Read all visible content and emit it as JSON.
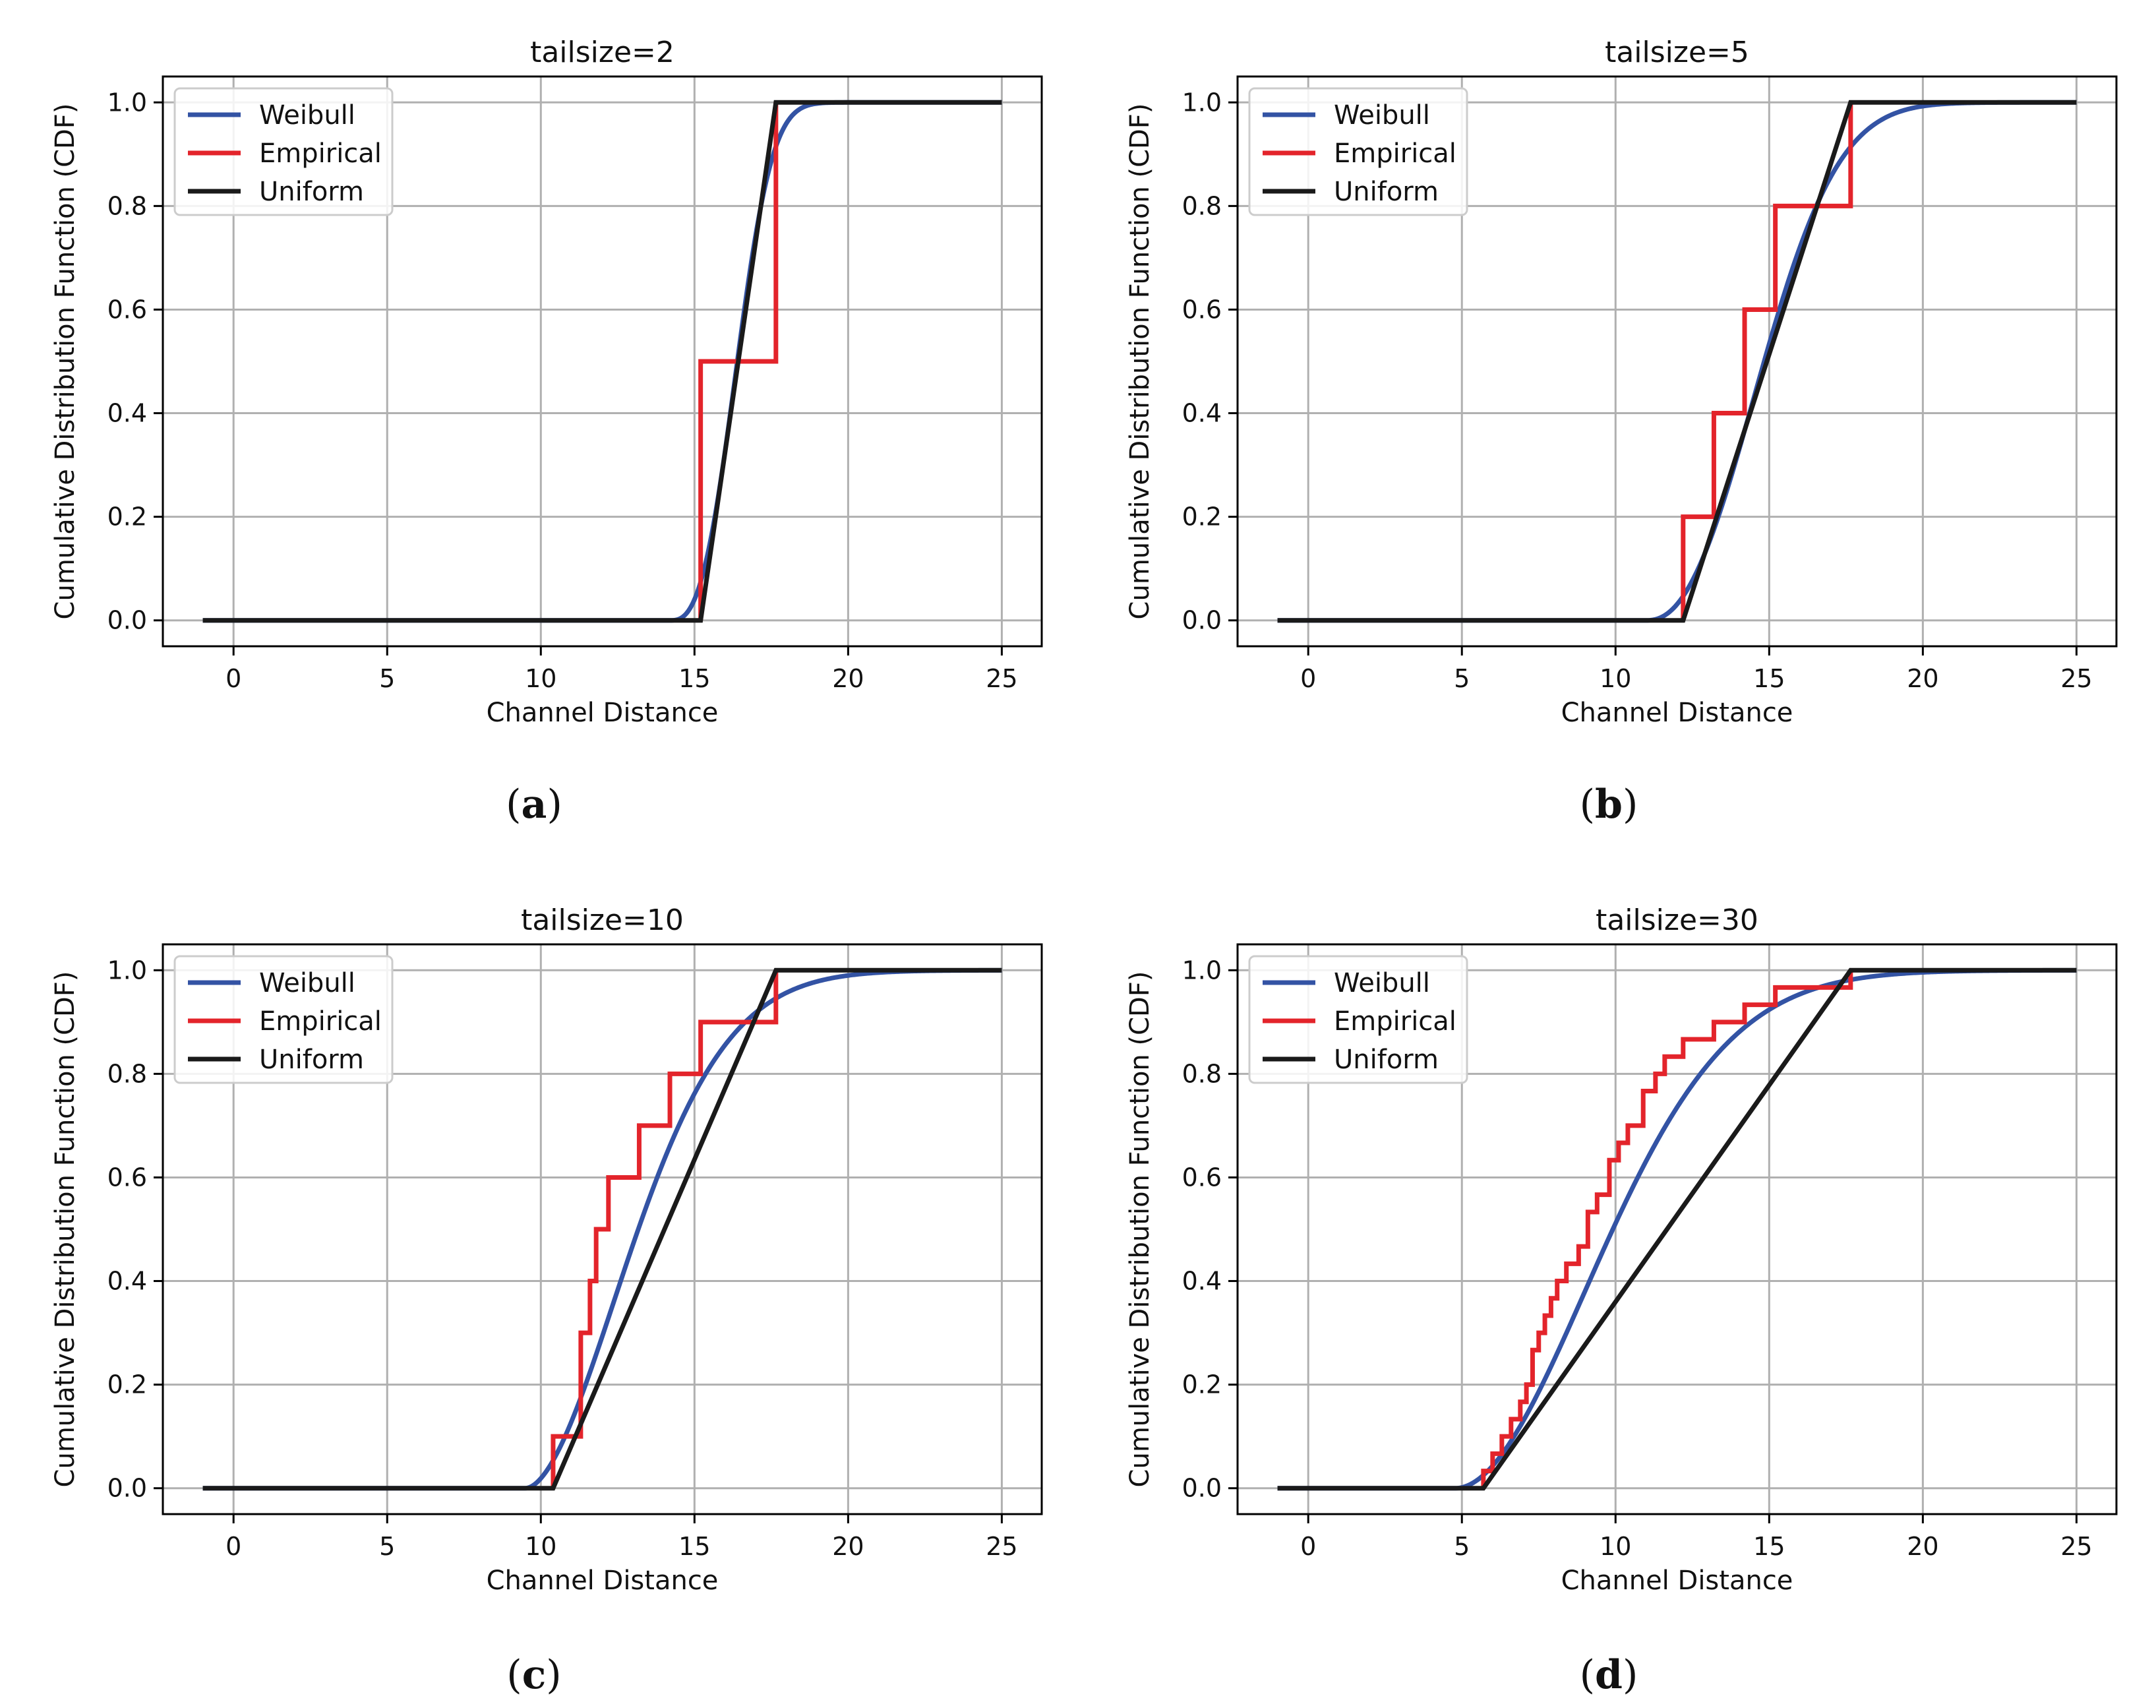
{
  "colors": {
    "weibull": "#3353a4",
    "empirical": "#e3242b",
    "uniform": "#1a1a1a",
    "grid": "#b0b0b0",
    "axis": "#000000",
    "legend_border": "#cccccc"
  },
  "chart_data": [
    {
      "type": "line",
      "panel": "a",
      "caption_letter": "a",
      "title": "tailsize=2",
      "xlabel": "Channel Distance",
      "ylabel": "Cumulative Distribution Function (CDF)",
      "xlim": [
        -2.3,
        26.3
      ],
      "ylim": [
        -0.05,
        1.05
      ],
      "xticks": [
        0,
        5,
        10,
        15,
        20,
        25
      ],
      "xtick_labels": [
        "0",
        "5",
        "10",
        "15",
        "20",
        "25"
      ],
      "yticks": [
        0.0,
        0.2,
        0.4,
        0.6,
        0.8,
        1.0
      ],
      "ytick_labels": [
        "0.0",
        "0.2",
        "0.4",
        "0.6",
        "0.8",
        "1.0"
      ],
      "grid": true,
      "legend_location": "upper-left",
      "series": [
        {
          "name": "Weibull",
          "kind": "weibull",
          "start": 14.2,
          "scale": 2.5,
          "shape": 2.8,
          "x_min": -1,
          "x_max": 25
        },
        {
          "name": "Empirical",
          "kind": "step",
          "x": [
            15.2,
            17.65
          ],
          "y": [
            0.5,
            1.0
          ],
          "x_max": 17.65
        },
        {
          "name": "Uniform",
          "kind": "uniform",
          "a": 15.2,
          "b": 17.65,
          "x_min": -1,
          "x_max": 25
        }
      ]
    },
    {
      "type": "line",
      "panel": "b",
      "caption_letter": "b",
      "title": "tailsize=5",
      "xlabel": "Channel Distance",
      "ylabel": "Cumulative Distribution Function (CDF)",
      "xlim": [
        -2.3,
        26.3
      ],
      "ylim": [
        -0.05,
        1.05
      ],
      "xticks": [
        0,
        5,
        10,
        15,
        20,
        25
      ],
      "xtick_labels": [
        "0",
        "5",
        "10",
        "15",
        "20",
        "25"
      ],
      "yticks": [
        0.0,
        0.2,
        0.4,
        0.6,
        0.8,
        1.0
      ],
      "ytick_labels": [
        "0.0",
        "0.2",
        "0.4",
        "0.6",
        "0.8",
        "1.0"
      ],
      "grid": true,
      "legend_location": "upper-left",
      "series": [
        {
          "name": "Weibull",
          "kind": "weibull",
          "start": 11.0,
          "scale": 4.5,
          "shape": 2.3,
          "x_min": -1,
          "x_max": 25
        },
        {
          "name": "Empirical",
          "kind": "step",
          "x": [
            12.2,
            13.2,
            14.2,
            15.2,
            17.65
          ],
          "y": [
            0.2,
            0.4,
            0.6,
            0.8,
            1.0
          ],
          "x_max": 17.65
        },
        {
          "name": "Uniform",
          "kind": "uniform",
          "a": 12.2,
          "b": 17.65,
          "x_min": -1,
          "x_max": 25
        }
      ]
    },
    {
      "type": "line",
      "panel": "c",
      "caption_letter": "c",
      "title": "tailsize=10",
      "xlabel": "Channel Distance",
      "ylabel": "Cumulative Distribution Function (CDF)",
      "xlim": [
        -2.3,
        26.3
      ],
      "ylim": [
        -0.05,
        1.05
      ],
      "xticks": [
        0,
        5,
        10,
        15,
        20,
        25
      ],
      "xtick_labels": [
        "0",
        "5",
        "10",
        "15",
        "20",
        "25"
      ],
      "yticks": [
        0.0,
        0.2,
        0.4,
        0.6,
        0.8,
        1.0
      ],
      "ytick_labels": [
        "0.0",
        "0.2",
        "0.4",
        "0.6",
        "0.8",
        "1.0"
      ],
      "grid": true,
      "legend_location": "upper-left",
      "series": [
        {
          "name": "Weibull",
          "kind": "weibull",
          "start": 9.5,
          "scale": 4.5,
          "shape": 1.8,
          "x_min": -1,
          "x_max": 25
        },
        {
          "name": "Empirical",
          "kind": "step",
          "x": [
            10.4,
            11.3,
            11.6,
            11.8,
            12.2,
            13.2,
            14.2,
            15.2,
            17.65
          ],
          "y": [
            0.1,
            0.3,
            0.4,
            0.5,
            0.6,
            0.7,
            0.8,
            0.9,
            1.0
          ],
          "x_max": 17.65
        },
        {
          "name": "Uniform",
          "kind": "uniform",
          "a": 10.4,
          "b": 17.65,
          "x_min": -1,
          "x_max": 25
        }
      ]
    },
    {
      "type": "line",
      "panel": "d",
      "caption_letter": "d",
      "title": "tailsize=30",
      "xlabel": "Channel Distance",
      "ylabel": "Cumulative Distribution Function (CDF)",
      "xlim": [
        -2.3,
        26.3
      ],
      "ylim": [
        -0.05,
        1.05
      ],
      "xticks": [
        0,
        5,
        10,
        15,
        20,
        25
      ],
      "xtick_labels": [
        "0",
        "5",
        "10",
        "15",
        "20",
        "25"
      ],
      "yticks": [
        0.0,
        0.2,
        0.4,
        0.6,
        0.8,
        1.0
      ],
      "ytick_labels": [
        "0.0",
        "0.2",
        "0.4",
        "0.6",
        "0.8",
        "1.0"
      ],
      "grid": true,
      "legend_location": "upper-left",
      "series": [
        {
          "name": "Weibull",
          "kind": "weibull",
          "start": 4.8,
          "scale": 6.2,
          "shape": 1.9,
          "x_min": -1,
          "x_max": 25
        },
        {
          "name": "Empirical",
          "kind": "step",
          "x": [
            5.7,
            6.0,
            6.3,
            6.6,
            6.9,
            7.1,
            7.3,
            7.5,
            7.7,
            7.9,
            8.1,
            8.4,
            8.8,
            9.1,
            9.4,
            9.8,
            10.1,
            10.4,
            10.9,
            11.3,
            11.6,
            12.2,
            13.2,
            14.2,
            15.2,
            17.65
          ],
          "y": [
            0.0333,
            0.0667,
            0.1,
            0.1333,
            0.1667,
            0.2,
            0.2667,
            0.3,
            0.3333,
            0.3667,
            0.4,
            0.4333,
            0.4667,
            0.5333,
            0.5667,
            0.6333,
            0.6667,
            0.7,
            0.7667,
            0.8,
            0.8333,
            0.8667,
            0.9,
            0.9333,
            0.9667,
            1.0
          ],
          "x_max": 17.65
        },
        {
          "name": "Uniform",
          "kind": "uniform",
          "a": 5.7,
          "b": 17.65,
          "x_min": -1,
          "x_max": 25
        }
      ]
    }
  ]
}
